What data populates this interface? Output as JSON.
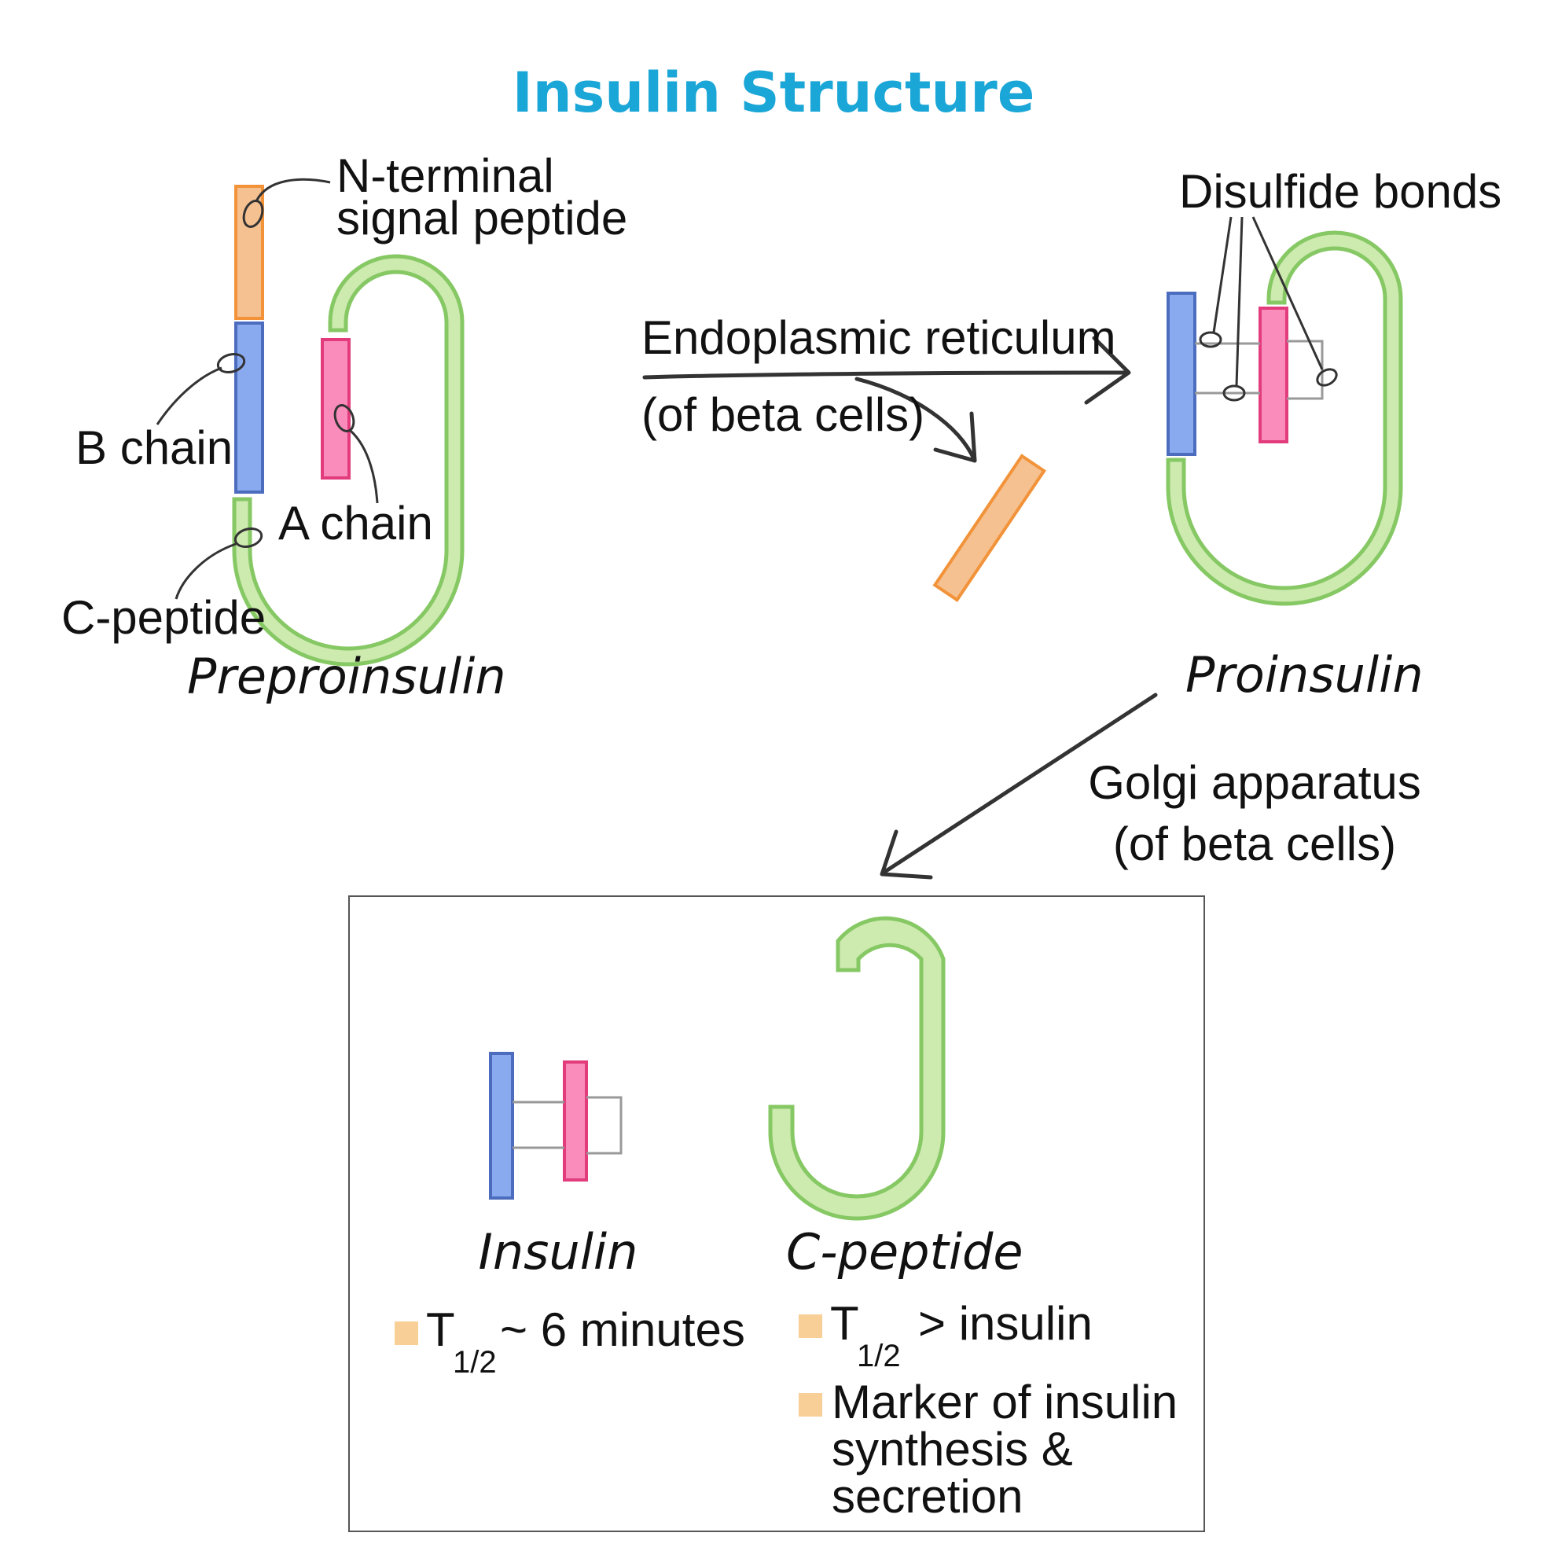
{
  "title": "Insulin Structure",
  "colors": {
    "title": "#1aa6d6",
    "signal_peptide": "#f5c191",
    "b_chain": "#8aaaf0",
    "a_chain": "#f98cba",
    "c_peptide": "#cdeaaf",
    "bullet": "#f9cf98"
  },
  "preproinsulin": {
    "name": "Preproinsulin",
    "labels": {
      "signal_peptide": "N-terminal",
      "signal_peptide_line2": "signal peptide",
      "b_chain": "B chain",
      "a_chain": "A chain",
      "c_peptide": "C-peptide"
    }
  },
  "er_step": {
    "line1": "Endoplasmic reticulum",
    "line2": "(of beta cells)"
  },
  "proinsulin": {
    "name": "Proinsulin",
    "disulfide_label": "Disulfide bonds"
  },
  "golgi_step": {
    "line1": "Golgi apparatus",
    "line2": "(of beta cells)"
  },
  "products": {
    "insulin": {
      "name": "Insulin",
      "notes": [
        {
          "symbol": "T",
          "subscript": "1/2",
          "text": "~ 6 minutes"
        }
      ]
    },
    "c_peptide": {
      "name": "C-peptide",
      "notes": [
        {
          "symbol": "T",
          "subscript": "1/2",
          "text": "> insulin"
        },
        {
          "line1": "Marker of insulin",
          "line2": "synthesis &",
          "line3": "secretion"
        }
      ]
    }
  }
}
